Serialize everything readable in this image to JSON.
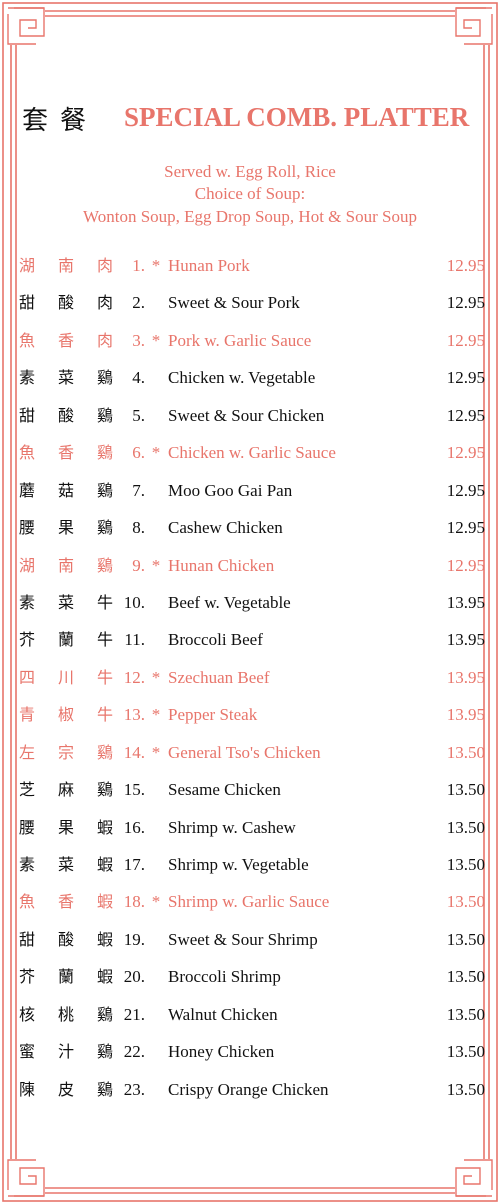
{
  "title_cn": "套餐",
  "title_en": "SPECIAL COMB. PLATTER",
  "subtitle": [
    "Served w. Egg Roll, Rice",
    "Choice of Soup:",
    "Wonton Soup, Egg Drop Soup, Hot & Sour Soup"
  ],
  "colors": {
    "accent": "#e8756b",
    "text": "#111111",
    "border": "#e8756b"
  },
  "items": [
    {
      "cn": [
        "湖",
        "南",
        "肉"
      ],
      "num": "1.",
      "spicy": true,
      "name": "Hunan Pork",
      "price": "12.95"
    },
    {
      "cn": [
        "甜",
        "酸",
        "肉"
      ],
      "num": "2.",
      "spicy": false,
      "name": "Sweet & Sour Pork",
      "price": "12.95"
    },
    {
      "cn": [
        "魚",
        "香",
        "肉"
      ],
      "num": "3.",
      "spicy": true,
      "name": "Pork w. Garlic Sauce",
      "price": "12.95"
    },
    {
      "cn": [
        "素",
        "菜",
        "鷄"
      ],
      "num": "4.",
      "spicy": false,
      "name": "Chicken w. Vegetable",
      "price": "12.95"
    },
    {
      "cn": [
        "甜",
        "酸",
        "鷄"
      ],
      "num": "5.",
      "spicy": false,
      "name": "Sweet & Sour Chicken",
      "price": "12.95"
    },
    {
      "cn": [
        "魚",
        "香",
        "鷄"
      ],
      "num": "6.",
      "spicy": true,
      "name": "Chicken w. Garlic Sauce",
      "price": "12.95"
    },
    {
      "cn": [
        "蘑",
        "菇",
        "鷄"
      ],
      "num": "7.",
      "spicy": false,
      "name": "Moo Goo Gai Pan",
      "price": "12.95"
    },
    {
      "cn": [
        "腰",
        "果",
        "鷄"
      ],
      "num": "8.",
      "spicy": false,
      "name": "Cashew Chicken",
      "price": "12.95"
    },
    {
      "cn": [
        "湖",
        "南",
        "鷄"
      ],
      "num": "9.",
      "spicy": true,
      "name": "Hunan Chicken",
      "price": "12.95"
    },
    {
      "cn": [
        "素",
        "菜",
        "牛"
      ],
      "num": "10.",
      "spicy": false,
      "name": "Beef w. Vegetable",
      "price": "13.95"
    },
    {
      "cn": [
        "芥",
        "蘭",
        "牛"
      ],
      "num": "11.",
      "spicy": false,
      "name": "Broccoli Beef",
      "price": "13.95"
    },
    {
      "cn": [
        "四",
        "川",
        "牛"
      ],
      "num": "12.",
      "spicy": true,
      "name": "Szechuan Beef",
      "price": "13.95"
    },
    {
      "cn": [
        "青",
        "椒",
        "牛"
      ],
      "num": "13.",
      "spicy": true,
      "name": "Pepper Steak",
      "price": "13.95"
    },
    {
      "cn": [
        "左",
        "宗",
        "鷄"
      ],
      "num": "14.",
      "spicy": true,
      "name": "General Tso's Chicken",
      "price": "13.50"
    },
    {
      "cn": [
        "芝",
        "麻",
        "鷄"
      ],
      "num": "15.",
      "spicy": false,
      "name": "Sesame Chicken",
      "price": "13.50"
    },
    {
      "cn": [
        "腰",
        "果",
        "蝦"
      ],
      "num": "16.",
      "spicy": false,
      "name": "Shrimp w. Cashew",
      "price": "13.50"
    },
    {
      "cn": [
        "素",
        "菜",
        "蝦"
      ],
      "num": "17.",
      "spicy": false,
      "name": "Shrimp w. Vegetable",
      "price": "13.50"
    },
    {
      "cn": [
        "魚",
        "香",
        "蝦"
      ],
      "num": "18.",
      "spicy": true,
      "name": "Shrimp w. Garlic Sauce",
      "price": "13.50"
    },
    {
      "cn": [
        "甜",
        "酸",
        "蝦"
      ],
      "num": "19.",
      "spicy": false,
      "name": "Sweet & Sour Shrimp",
      "price": "13.50"
    },
    {
      "cn": [
        "芥",
        "蘭",
        "蝦"
      ],
      "num": "20.",
      "spicy": false,
      "name": "Broccoli Shrimp",
      "price": "13.50"
    },
    {
      "cn": [
        "核",
        "桃",
        "鷄"
      ],
      "num": "21.",
      "spicy": false,
      "name": "Walnut Chicken",
      "price": "13.50"
    },
    {
      "cn": [
        "蜜",
        "汁",
        "鷄"
      ],
      "num": "22.",
      "spicy": false,
      "name": "Honey Chicken",
      "price": "13.50"
    },
    {
      "cn": [
        "陳",
        "皮",
        "鷄"
      ],
      "num": "23.",
      "spicy": false,
      "name": "Crispy Orange Chicken",
      "price": "13.50"
    }
  ]
}
